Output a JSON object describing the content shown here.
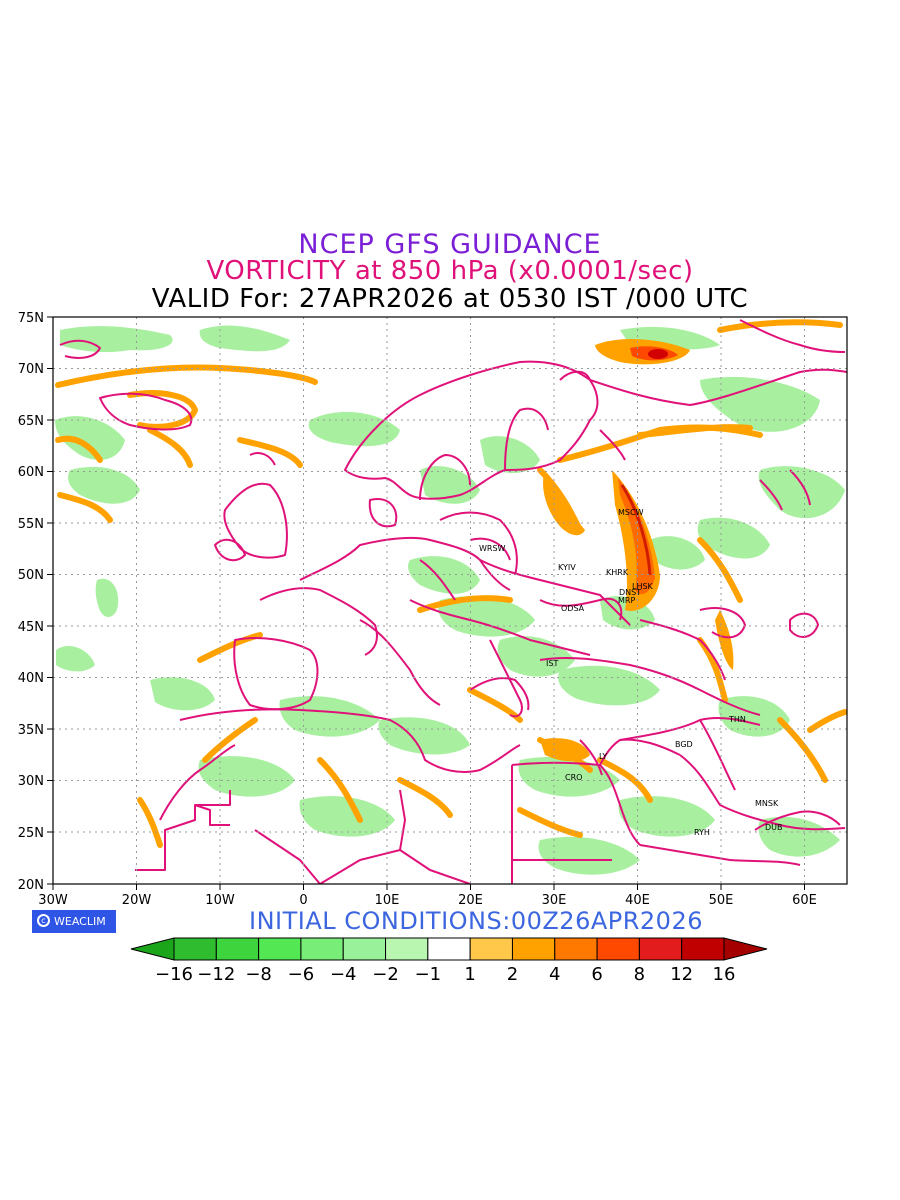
{
  "titles": {
    "line1": "NCEP GFS GUIDANCE",
    "line2": "VORTICITY at 850 hPa (x0.0001/sec)",
    "line3": "VALID For: 27APR2026 at 0530 IST /000 UTC"
  },
  "initial_conditions": "INITIAL CONDITIONS:00Z26APR2026",
  "logo": {
    "text": "WEACLIM",
    "icon": "copyright-icon"
  },
  "lat_labels": [
    "75N",
    "70N",
    "65N",
    "60N",
    "55N",
    "50N",
    "45N",
    "40N",
    "35N",
    "30N",
    "25N",
    "20N"
  ],
  "lon_labels": [
    "30W",
    "20W",
    "10W",
    "0",
    "10E",
    "20E",
    "30E",
    "40E",
    "50E",
    "60E"
  ],
  "cities": [
    "MSCW",
    "WRSW",
    "KYIV",
    "KHRK",
    "LHSK",
    "DNST",
    "MRP",
    "ODSA",
    "IST",
    "THN",
    "BGD",
    "LY",
    "CRO",
    "MNSK",
    "DUB",
    "RYH"
  ],
  "colorbar": {
    "labels": [
      "-16",
      "-12",
      "-8",
      "-6",
      "-4",
      "-2",
      "-1",
      "1",
      "2",
      "4",
      "6",
      "8",
      "12",
      "16"
    ],
    "colors": [
      "#1aa51a",
      "#2fbd2f",
      "#3dd43d",
      "#53e853",
      "#78ee78",
      "#99f299",
      "#b9f6b0",
      "#ffffff",
      "#ffc84a",
      "#ffa200",
      "#ff7800",
      "#ff4800",
      "#e21c1c",
      "#c00000",
      "#a50000"
    ]
  },
  "colors": {
    "border": "#e0127a",
    "green": "#99ee99",
    "orange": "#ffa200",
    "red": "#e23c00",
    "grid": "#9a9a9a"
  }
}
